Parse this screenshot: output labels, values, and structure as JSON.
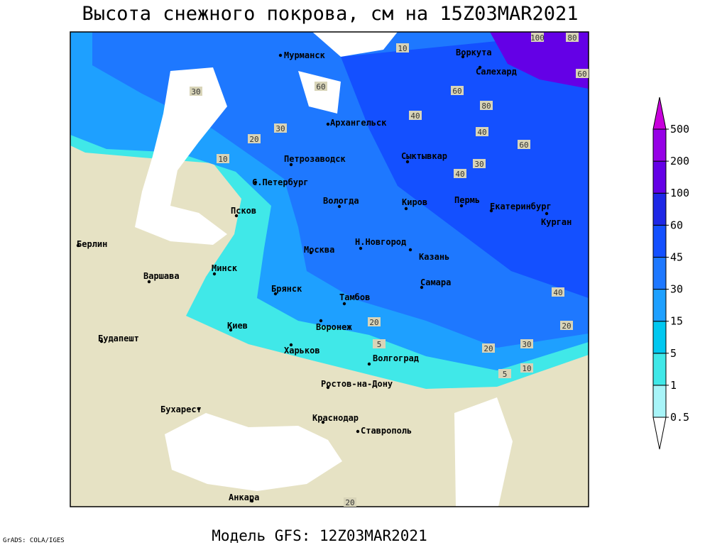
{
  "title": "Высота снежного покрова, см на 15Z03MAR2021",
  "footer": "Модель GFS: 12Z03MAR2021",
  "credit": "GrADS: COLA/IGES",
  "cities": [
    "Мурманск",
    "Архангельск",
    "Воркута",
    "Салехард",
    "Петрозаводск",
    "Сыктывкар",
    "С.Петербург",
    "Вологда",
    "Киров",
    "Пермь",
    "Екатеринбург",
    "Курган",
    "Псков",
    "Москва",
    "Н.Новгород",
    "Казань",
    "Берлин",
    "Варшава",
    "Минск",
    "Брянск",
    "Тамбов",
    "Самара",
    "Киев",
    "Воронеж",
    "Будапешт",
    "Харьков",
    "Волгоград",
    "Ростов-на-Дону",
    "Бухарест",
    "Краснодар",
    "Ставрополь",
    "Анкара"
  ],
  "contour_labels": [
    100,
    80,
    10,
    60,
    60,
    80,
    40,
    40,
    60,
    30,
    40,
    20,
    10,
    20,
    30,
    40,
    20,
    10,
    5,
    5,
    20,
    30,
    30,
    20,
    60
  ],
  "legend": {
    "levels": [
      0.5,
      1,
      5,
      15,
      30,
      45,
      60,
      100,
      200,
      500
    ],
    "colors": [
      "#ffffff",
      "#a8f4f8",
      "#40e8e8",
      "#00c8f0",
      "#1ea0ff",
      "#1e78ff",
      "#1450ff",
      "#1e28e6",
      "#6400e6",
      "#9600e6",
      "#c800dc"
    ]
  }
}
